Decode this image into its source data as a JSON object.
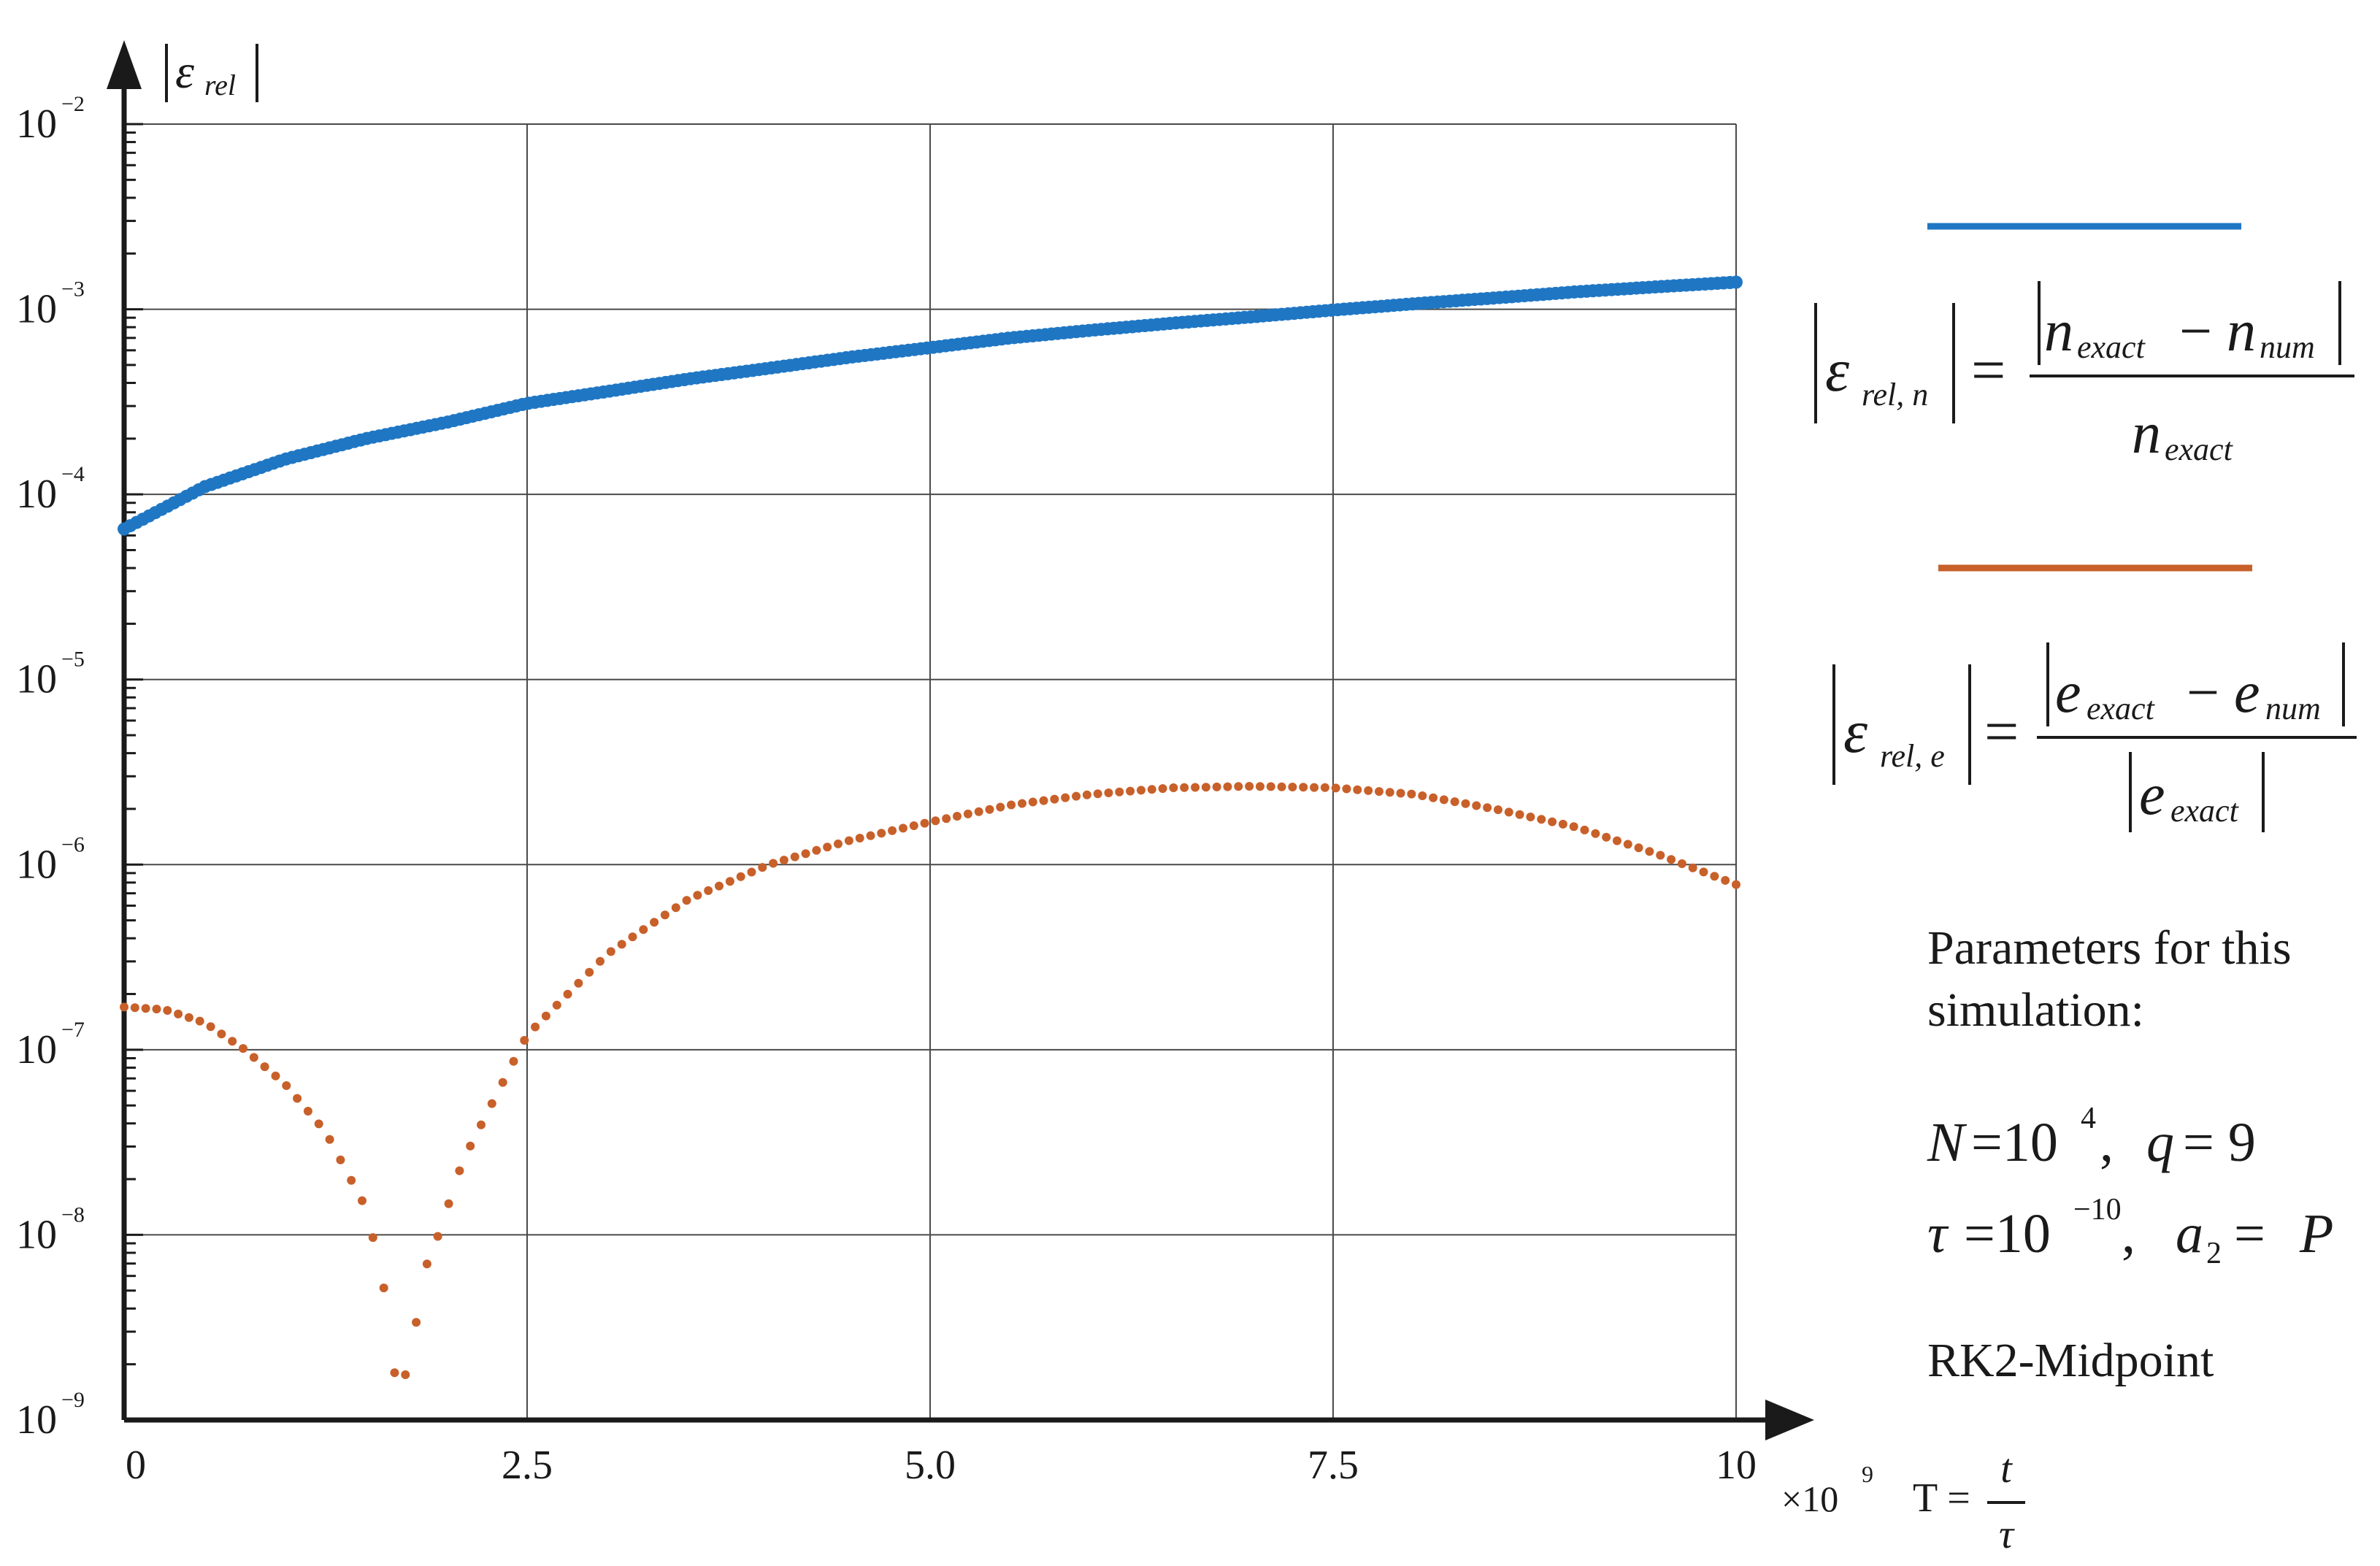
{
  "chart_data": {
    "type": "scatter",
    "title": "",
    "xlabel": "T = t / τ",
    "x_multiplier": "×10⁹",
    "ylabel": "|ε_rel|",
    "xlim": [
      0,
      10
    ],
    "ylim": [
      1e-09,
      0.01
    ],
    "yscale": "log",
    "grid": true,
    "x_ticks": [
      "0",
      "2.5",
      "5.0",
      "7.5",
      "10"
    ],
    "y_ticks": [
      {
        "base": "10",
        "exp": "−2"
      },
      {
        "base": "10",
        "exp": "−3"
      },
      {
        "base": "10",
        "exp": "−4"
      },
      {
        "base": "10",
        "exp": "−5"
      },
      {
        "base": "10",
        "exp": "−6"
      },
      {
        "base": "10",
        "exp": "−7"
      },
      {
        "base": "10",
        "exp": "−8"
      },
      {
        "base": "10",
        "exp": "−9"
      }
    ],
    "legend_placement": "right",
    "series": [
      {
        "key": "n",
        "color": "#1f77c4",
        "formula": "|ε_rel,n| = |n_exact − n_num| / n_exact",
        "x": [
          0,
          0.5,
          1,
          1.5,
          2,
          2.5,
          3,
          3.5,
          4,
          4.5,
          5,
          5.5,
          6,
          6.5,
          7,
          7.5,
          8,
          8.5,
          9,
          9.5,
          10
        ],
        "y": [
          6.5e-05,
          0.00011,
          0.000155,
          0.0002,
          0.000245,
          0.00031,
          0.00036,
          0.00042,
          0.00048,
          0.00055,
          0.00062,
          0.0007,
          0.00077,
          0.00084,
          0.00091,
          0.00099,
          0.00107,
          0.00115,
          0.00124,
          0.00132,
          0.0014
        ]
      },
      {
        "key": "e",
        "color": "#c8602a",
        "formula": "|ε_rel,e| = |e_exact − e_num| / |e_exact|",
        "x": [
          0,
          0.25,
          0.5,
          0.75,
          1,
          1.25,
          1.5,
          1.6,
          1.65,
          1.7,
          1.8,
          1.85,
          1.95,
          2.1,
          2.3,
          2.5,
          3,
          3.5,
          4,
          4.5,
          5,
          5.5,
          6,
          6.5,
          7,
          7.5,
          8,
          8.5,
          9,
          9.5,
          10
        ],
        "y": [
          1.7e-07,
          1.65e-07,
          1.4e-07,
          1e-07,
          6.5e-08,
          3.6e-08,
          1.4e-08,
          6e-09,
          3e-09,
          1.2e-09,
          2.8e-09,
          6e-09,
          1e-08,
          2.5e-08,
          5.5e-08,
          1.2e-07,
          3.3e-07,
          6.5e-07,
          1e-06,
          1.35e-06,
          1.7e-06,
          2.1e-06,
          2.4e-06,
          2.6e-06,
          2.65e-06,
          2.6e-06,
          2.4e-06,
          2e-06,
          1.6e-06,
          1.15e-06,
          7.8e-07
        ]
      }
    ]
  },
  "legend": {
    "n": {
      "lhs_main": "ε",
      "lhs_sub": "rel, n",
      "eq": "=",
      "num_a": "n",
      "num_a_sub": "exact",
      "minus": "−",
      "num_b": "n",
      "num_b_sub": "num",
      "den": "n",
      "den_sub": "exact"
    },
    "e": {
      "lhs_main": "ε",
      "lhs_sub": "rel, e",
      "eq": "=",
      "num_a": "e",
      "num_a_sub": "exact",
      "minus": "−",
      "num_b": "e",
      "num_b_sub": "num",
      "den": "e",
      "den_sub": "exact"
    }
  },
  "axis_text": {
    "ylabel_main": "ε",
    "ylabel_sub": "rel",
    "x_mult_prefix": "×10",
    "x_mult_exp": "9",
    "xlabel_T": "T =",
    "xlabel_num": "t",
    "xlabel_den": "τ"
  },
  "notes": {
    "params_line1": "Parameters for this",
    "params_line2": "simulation:",
    "eq1_N": "N",
    "eq1_eq": "=10",
    "eq1_exp": "4",
    "eq1_comma": ",",
    "eq1_q": "q",
    "eq1_val": "= 9",
    "eq2_tau": "τ",
    "eq2_eq": "=10",
    "eq2_exp": "−10",
    "eq2_comma": ",",
    "eq2_a": "a",
    "eq2_a_sub": "2",
    "eq2_val": "= ",
    "eq2_P": "P",
    "method": "RK2-Midpoint"
  }
}
